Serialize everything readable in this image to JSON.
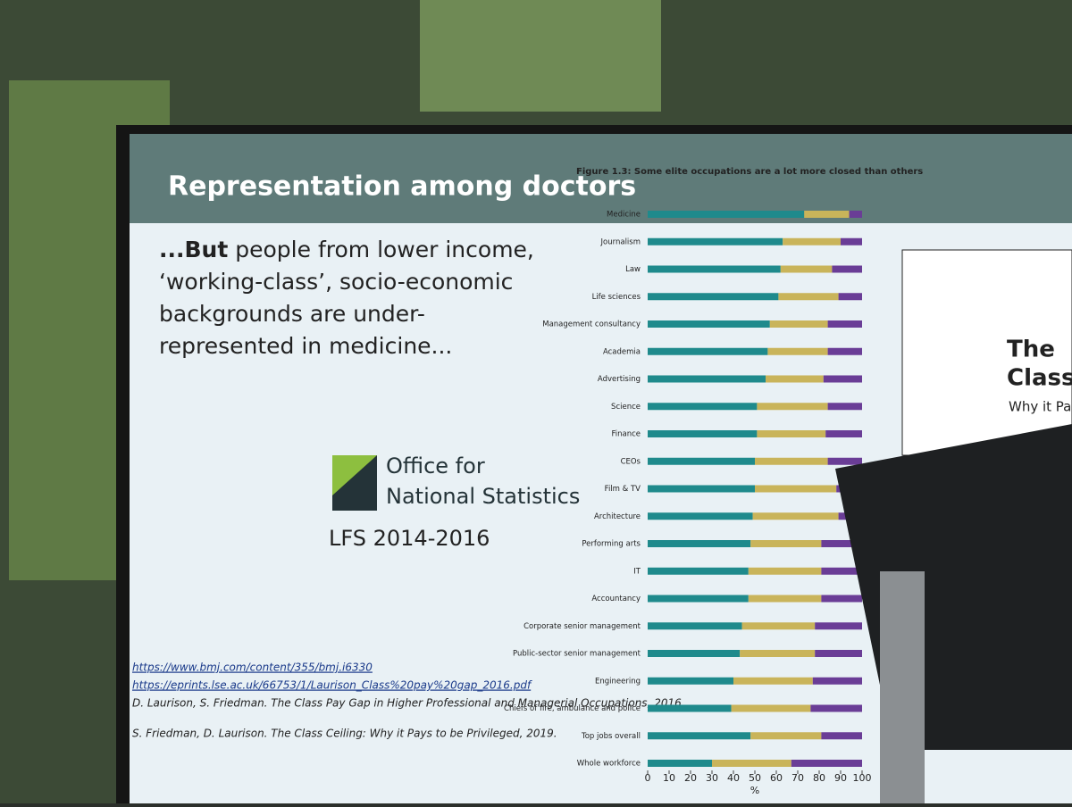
{
  "slide_title": "Representation among doctors",
  "body": {
    "bold": "...But",
    "text": "people from lower income, ‘working-class’, socio-economic backgrounds are under-represented in medicine..."
  },
  "logo": {
    "line1": "Office for",
    "line2": "National Statistics",
    "caption": "LFS 2014-2016"
  },
  "references": [
    "https://www.bmj.com/content/355/bmj.i6330",
    "https://eprints.lse.ac.uk/66753/1/Laurison_Class%20pay%20gap_2016.pdf",
    "D. Laurison, S. Friedman. The Class Pay Gap in Higher Professional and Managerial Occupations, 2016.",
    "S. Friedman, D. Laurison. The Class Ceiling: Why it Pays to be Privileged, 2019."
  ],
  "book": {
    "line1": "The",
    "line2": "Class",
    "line3": "Why it Pays"
  },
  "chart_data": {
    "type": "stacked-barh",
    "title": "Figure 1.3: Some elite occupations are a lot more closed than others",
    "categories": [
      "Medicine",
      "Journalism",
      "Law",
      "Life sciences",
      "Management consultancy",
      "Academia",
      "Advertising",
      "Science",
      "Finance",
      "CEOs",
      "Film & TV",
      "Architecture",
      "Performing arts",
      "IT",
      "Accountancy",
      "Corporate senior management",
      "Public-sector senior management",
      "Engineering",
      "Chiefs of fire, ambulance and police",
      "Top jobs overall",
      "Whole workforce"
    ],
    "series": [
      {
        "color": "#1f8a8c",
        "values": [
          73,
          63,
          62,
          61,
          57,
          56,
          55,
          51,
          51,
          50,
          50,
          49,
          48,
          47,
          47,
          44,
          43,
          40,
          39,
          48,
          30
        ]
      },
      {
        "color": "#c9b45a",
        "values": [
          21,
          27,
          24,
          28,
          27,
          28,
          27,
          33,
          32,
          34,
          38,
          40,
          33,
          34,
          34,
          34,
          35,
          37,
          37,
          33,
          37
        ]
      },
      {
        "color": "#6a3d96",
        "values": [
          6,
          10,
          14,
          11,
          16,
          16,
          18,
          16,
          17,
          16,
          12,
          11,
          19,
          19,
          19,
          22,
          22,
          23,
          24,
          19,
          33
        ]
      }
    ],
    "xlim": [
      0,
      100
    ],
    "xticks": [
      0,
      10,
      20,
      30,
      40,
      50,
      60,
      70,
      80,
      90,
      100
    ],
    "xlabel": "%"
  }
}
